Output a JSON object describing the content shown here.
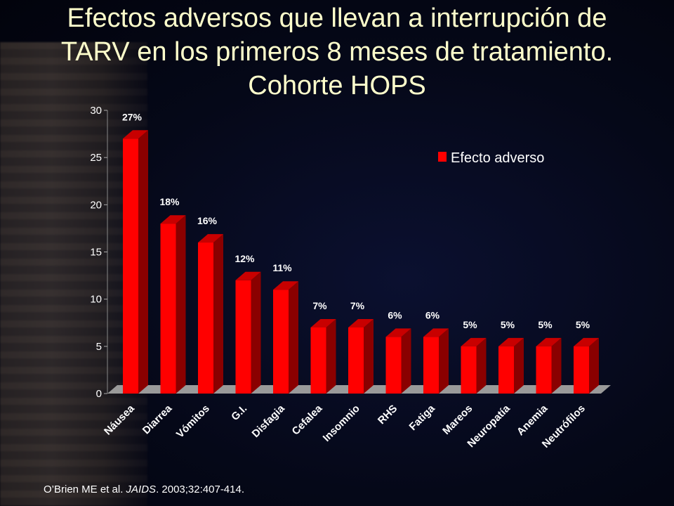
{
  "title": {
    "line1": "Efectos adversos que llevan a interrupción de",
    "line2": "TARV en los primeros 8 meses de tratamiento.",
    "line3": "Cohorte HOPS"
  },
  "citation": {
    "authors": "O’Brien ME et al. ",
    "journal": "JAIDS",
    "details": ". 2003;32:407-414."
  },
  "chart_data": {
    "type": "bar",
    "categories": [
      "Náusea",
      "Diarrea",
      "Vómitos",
      "G.I.",
      "Disfagia",
      "Cefalea",
      "Insomnio",
      "RHS",
      "Fatiga",
      "Mareos",
      "Neuropatía",
      "Anemia",
      "Neutrófilos"
    ],
    "series": [
      {
        "name": "Efecto adverso",
        "values": [
          27,
          18,
          16,
          12,
          11,
          7,
          7,
          6,
          6,
          5,
          5,
          5,
          5
        ]
      }
    ],
    "data_labels": [
      "27%",
      "18%",
      "16%",
      "12%",
      "11%",
      "7%",
      "7%",
      "6%",
      "6%",
      "5%",
      "5%",
      "5%",
      "5%"
    ],
    "y_ticks": [
      "0",
      "5",
      "10",
      "15",
      "20",
      "25",
      "30"
    ],
    "ylim": [
      0,
      30
    ],
    "grid": false,
    "legend_position": "top-right",
    "colors": {
      "bar_front": "#ff0000",
      "bar_side": "#8a0000",
      "bar_top": "#c80000",
      "floor": "#9a9a9a",
      "axis_text": "#ffffff",
      "title": "#ffffcc"
    }
  }
}
